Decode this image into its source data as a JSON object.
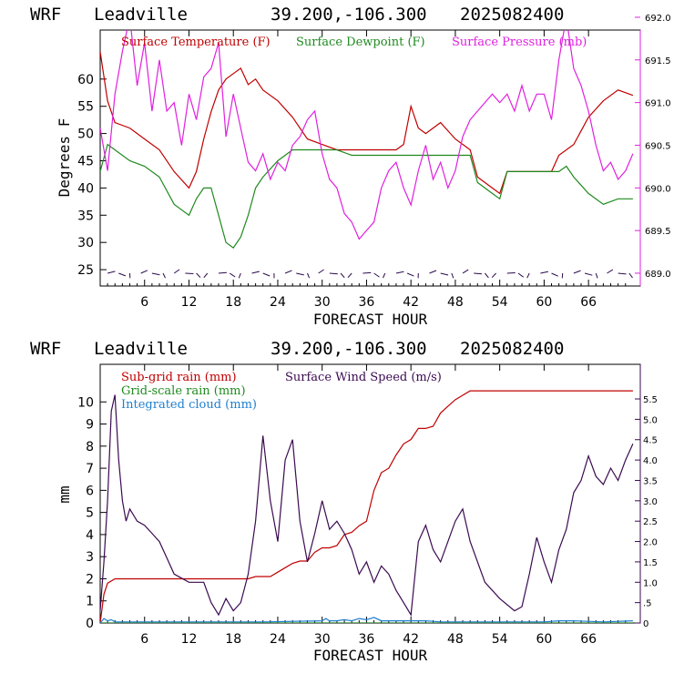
{
  "chart_data": [
    {
      "type": "line",
      "header": {
        "model": "WRF",
        "location": "Leadville",
        "coords": "39.200,-106.300",
        "init": "2025082400"
      },
      "xlabel": "FORECAST HOUR",
      "ylabel": "Degrees F",
      "xlim": [
        0,
        73
      ],
      "ylim": [
        22,
        69
      ],
      "y2lim": [
        688.85,
        691.85
      ],
      "x_ticks": [
        6,
        12,
        18,
        24,
        30,
        36,
        42,
        48,
        54,
        60,
        66
      ],
      "x_tick_labels": [
        "6",
        "12",
        "18",
        "24",
        "30",
        "36",
        "42",
        "48",
        "54",
        "60",
        "66"
      ],
      "y_ticks": [
        25,
        30,
        35,
        40,
        45,
        50,
        55,
        60
      ],
      "y_tick_labels": [
        "25",
        "30",
        "35",
        "40",
        "45",
        "50",
        "55",
        "60"
      ],
      "y2_ticks": [
        689.0,
        689.5,
        690.0,
        690.5,
        691.0,
        691.5,
        692.0
      ],
      "y2_tick_labels": [
        "689.0",
        "689.5",
        "690.0",
        "690.5",
        "691.0",
        "691.5",
        "692.0"
      ],
      "legend": [
        "Surface Temperature (F)",
        "Surface Dewpoint (F)",
        "Surface Pressure (mb)"
      ],
      "colors": {
        "temperature": "#c00000",
        "dewpoint": "#1f8a1f",
        "pressure": "#e020e0",
        "barbs": "#2a0a4a"
      },
      "series": [
        {
          "name": "Surface Temperature (F)",
          "axis": "left",
          "x": [
            0,
            1,
            2,
            4,
            6,
            8,
            10,
            12,
            13,
            14,
            15,
            16,
            17,
            18,
            19,
            20,
            21,
            22,
            24,
            26,
            28,
            30,
            32,
            34,
            36,
            38,
            40,
            41,
            42,
            43,
            44,
            45,
            46,
            48,
            50,
            51,
            52,
            53,
            54,
            55,
            58,
            61,
            62,
            64,
            66,
            68,
            70,
            72
          ],
          "y": [
            65,
            56,
            52,
            51,
            49,
            47,
            43,
            40,
            43,
            49,
            54,
            58,
            60,
            61,
            62,
            59,
            60,
            58,
            56,
            53,
            49,
            48,
            47,
            47,
            47,
            47,
            47,
            48,
            55,
            51,
            50,
            51,
            52,
            49,
            47,
            42,
            41,
            40,
            39,
            43,
            43,
            43,
            46,
            48,
            53,
            56,
            58,
            57
          ]
        },
        {
          "name": "Surface Dewpoint (F)",
          "axis": "left",
          "x": [
            0,
            1,
            2,
            4,
            6,
            8,
            10,
            12,
            13,
            14,
            15,
            16,
            17,
            18,
            19,
            20,
            21,
            22,
            24,
            26,
            28,
            30,
            32,
            34,
            36,
            38,
            40,
            42,
            44,
            46,
            48,
            50,
            51,
            52,
            53,
            54,
            55,
            58,
            60,
            62,
            63,
            64,
            66,
            68,
            70,
            72
          ],
          "y": [
            43,
            48,
            47,
            45,
            44,
            42,
            37,
            35,
            38,
            40,
            40,
            35,
            30,
            29,
            31,
            35,
            40,
            42,
            45,
            47,
            47,
            47,
            47,
            46,
            46,
            46,
            46,
            46,
            46,
            46,
            46,
            46,
            41,
            40,
            39,
            38,
            43,
            43,
            43,
            43,
            44,
            42,
            39,
            37,
            38,
            38
          ]
        },
        {
          "name": "Surface Pressure (mb)",
          "axis": "right",
          "x": [
            0,
            1,
            2,
            3,
            4,
            5,
            6,
            7,
            8,
            9,
            10,
            11,
            12,
            13,
            14,
            15,
            16,
            17,
            18,
            19,
            20,
            21,
            22,
            23,
            24,
            25,
            26,
            27,
            28,
            29,
            30,
            31,
            32,
            33,
            34,
            35,
            36,
            37,
            38,
            39,
            40,
            41,
            42,
            43,
            44,
            45,
            46,
            47,
            48,
            49,
            50,
            51,
            52,
            53,
            54,
            55,
            56,
            57,
            58,
            59,
            60,
            61,
            62,
            63,
            64,
            65,
            66,
            67,
            68,
            69,
            70,
            71,
            72
          ],
          "y": [
            690.7,
            690.2,
            691.1,
            691.6,
            692.0,
            691.2,
            691.7,
            690.9,
            691.5,
            690.9,
            691.0,
            690.5,
            691.1,
            690.8,
            691.3,
            691.4,
            691.7,
            690.6,
            691.1,
            690.7,
            690.3,
            690.2,
            690.4,
            690.1,
            690.3,
            690.2,
            690.5,
            690.6,
            690.8,
            690.9,
            690.4,
            690.1,
            690.0,
            689.7,
            689.6,
            689.4,
            689.5,
            689.6,
            690.0,
            690.2,
            690.3,
            690.0,
            689.8,
            690.2,
            690.5,
            690.1,
            690.3,
            690.0,
            690.2,
            690.6,
            690.8,
            690.9,
            691.0,
            691.1,
            691.0,
            691.1,
            690.9,
            691.2,
            690.9,
            691.1,
            691.1,
            690.8,
            691.5,
            692.0,
            691.4,
            691.2,
            690.9,
            690.5,
            690.2,
            690.3,
            690.1,
            690.2,
            690.4
          ]
        }
      ]
    },
    {
      "type": "line",
      "header": {
        "model": "WRF",
        "location": "Leadville",
        "coords": "39.200,-106.300",
        "init": "2025082400"
      },
      "xlabel": "FORECAST HOUR",
      "ylabel": "mm",
      "xlim": [
        0,
        73
      ],
      "ylim": [
        0,
        11.7
      ],
      "y2lim": [
        0,
        6.35
      ],
      "x_ticks": [
        6,
        12,
        18,
        24,
        30,
        36,
        42,
        48,
        54,
        60,
        66
      ],
      "x_tick_labels": [
        "6",
        "12",
        "18",
        "24",
        "30",
        "36",
        "42",
        "48",
        "54",
        "60",
        "66"
      ],
      "y_ticks": [
        0,
        1,
        2,
        3,
        4,
        5,
        6,
        7,
        8,
        9,
        10
      ],
      "y_tick_labels": [
        "0",
        "1",
        "2",
        "3",
        "4",
        "5",
        "6",
        "7",
        "8",
        "9",
        "10"
      ],
      "y2_ticks": [
        0,
        0.5,
        1.0,
        1.5,
        2.0,
        2.5,
        3.0,
        3.5,
        4.0,
        4.5,
        5.0,
        5.5
      ],
      "y2_tick_labels": [
        "0",
        ".5",
        "1.0",
        "1.5",
        "2.0",
        "2.5",
        "3.0",
        "3.5",
        "4.0",
        "4.5",
        "5.0",
        "5.5"
      ],
      "legend": [
        "Sub-grid rain (mm)",
        "Grid-scale rain (mm)",
        "Integrated cloud (mm)",
        "Surface Wind Speed (m/s)"
      ],
      "colors": {
        "subgrid": "#c00000",
        "gridscale": "#1f8a1f",
        "cloud": "#1e7fd0",
        "wind": "#3a0a50"
      },
      "series": [
        {
          "name": "Sub-grid rain (mm)",
          "axis": "left",
          "x": [
            0,
            0.5,
            1,
            2,
            4,
            6,
            8,
            10,
            12,
            14,
            16,
            18,
            20,
            21,
            22,
            23,
            24,
            25,
            26,
            27,
            28,
            29,
            30,
            31,
            32,
            33,
            34,
            35,
            36,
            37,
            38,
            39,
            40,
            41,
            42,
            43,
            44,
            45,
            46,
            47,
            48,
            49,
            50,
            52,
            56,
            60,
            64,
            68,
            72
          ],
          "y": [
            0,
            1.3,
            1.8,
            2.0,
            2.0,
            2.0,
            2.0,
            2.0,
            2.0,
            2.0,
            2.0,
            2.0,
            2.0,
            2.1,
            2.1,
            2.1,
            2.3,
            2.5,
            2.7,
            2.8,
            2.8,
            3.2,
            3.4,
            3.4,
            3.5,
            4.0,
            4.1,
            4.4,
            4.6,
            6.0,
            6.8,
            7.0,
            7.6,
            8.1,
            8.3,
            8.8,
            8.8,
            8.9,
            9.5,
            9.8,
            10.1,
            10.3,
            10.5,
            10.5,
            10.5,
            10.5,
            10.5,
            10.5,
            10.5
          ]
        },
        {
          "name": "Grid-scale rain (mm)",
          "axis": "left",
          "x": [
            0,
            72
          ],
          "y": [
            0,
            0
          ]
        },
        {
          "name": "Integrated cloud (mm)",
          "axis": "left",
          "x": [
            0,
            0.5,
            1,
            1.5,
            2,
            10,
            20,
            22,
            30,
            30.5,
            31,
            32,
            33,
            34,
            35,
            36,
            37,
            38,
            40,
            44,
            46,
            48,
            52,
            56,
            60,
            62,
            64,
            68,
            72
          ],
          "y": [
            0,
            0.2,
            0.1,
            0.15,
            0.05,
            0.05,
            0.05,
            0.05,
            0.1,
            0.2,
            0.1,
            0.1,
            0.15,
            0.1,
            0.2,
            0.15,
            0.25,
            0.1,
            0.1,
            0.1,
            0.05,
            0.05,
            0.05,
            0.05,
            0.05,
            0.1,
            0.1,
            0.05,
            0.1
          ]
        },
        {
          "name": "Surface Wind Speed (m/s)",
          "axis": "right",
          "x": [
            0,
            0.5,
            1,
            1.5,
            2,
            2.5,
            3,
            3.5,
            4,
            5,
            6,
            7,
            8,
            9,
            10,
            11,
            12,
            13,
            14,
            15,
            16,
            17,
            18,
            19,
            20,
            21,
            22,
            23,
            24,
            25,
            26,
            27,
            28,
            29,
            30,
            31,
            32,
            33,
            34,
            35,
            36,
            37,
            38,
            39,
            40,
            41,
            42,
            43,
            44,
            45,
            46,
            47,
            48,
            49,
            50,
            52,
            54,
            56,
            57,
            58,
            59,
            60,
            61,
            62,
            63,
            64,
            65,
            66,
            67,
            68,
            69,
            70,
            71,
            72
          ],
          "y": [
            0.3,
            1.5,
            3.0,
            5.2,
            5.6,
            4.0,
            3.0,
            2.5,
            2.8,
            2.5,
            2.4,
            2.2,
            2.0,
            1.6,
            1.2,
            1.1,
            1.0,
            1.0,
            1.0,
            0.5,
            0.2,
            0.6,
            0.3,
            0.5,
            1.2,
            2.5,
            4.6,
            3.0,
            2.0,
            4.0,
            4.5,
            2.5,
            1.5,
            2.2,
            3.0,
            2.3,
            2.5,
            2.2,
            1.8,
            1.2,
            1.5,
            1.0,
            1.4,
            1.2,
            0.8,
            0.5,
            0.2,
            2.0,
            2.4,
            1.8,
            1.5,
            2.0,
            2.5,
            2.8,
            2.0,
            1.0,
            0.6,
            0.3,
            0.4,
            1.2,
            2.1,
            1.5,
            1.0,
            1.8,
            2.3,
            3.2,
            3.5,
            4.1,
            3.6,
            3.4,
            3.8,
            3.5,
            4.0,
            4.4
          ]
        }
      ]
    }
  ]
}
